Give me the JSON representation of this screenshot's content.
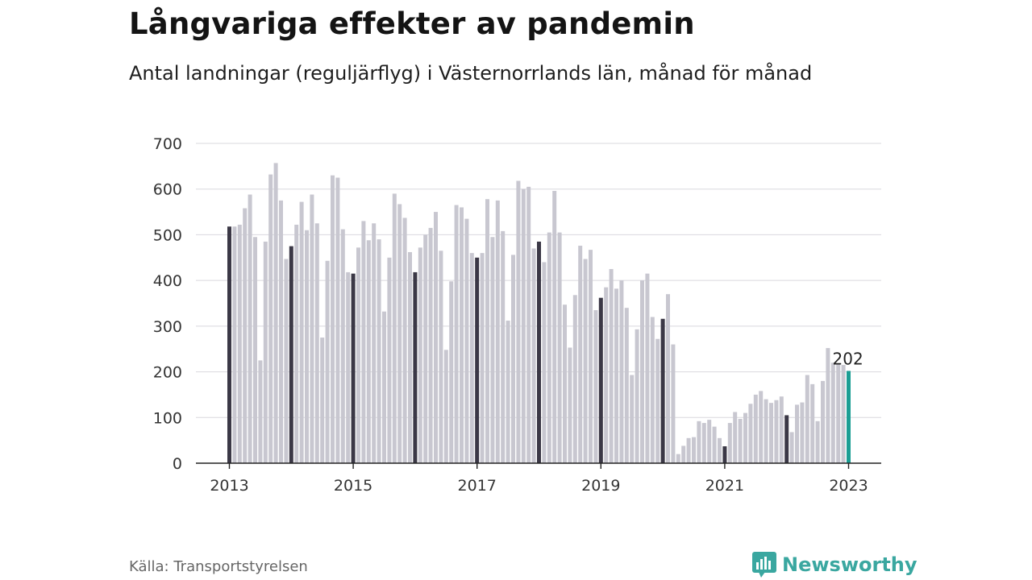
{
  "title": "Långvariga effekter av pandemin",
  "subtitle": "Antal landningar (reguljärflyg) i Västernorrlands län, månad för månad",
  "source": "Källa: Transportstyrelsen",
  "brand": {
    "name": "Newsworthy",
    "icon": "newsworthy-logo-icon",
    "color": "#3aa7a0"
  },
  "chart_data": {
    "type": "bar",
    "title": "",
    "xlabel": "",
    "ylabel": "",
    "ylim": [
      0,
      700
    ],
    "yticks": [
      0,
      100,
      200,
      300,
      400,
      500,
      600,
      700
    ],
    "xtick_labels": [
      "2013",
      "2015",
      "2017",
      "2019",
      "2021",
      "2023"
    ],
    "grid": true,
    "start": "2013-01",
    "end": "2023-01",
    "colors": {
      "january": "#3b3846",
      "other": "#c8c7d0",
      "latest": "#1b9e94"
    },
    "highlight_label": "202",
    "values": [
      518,
      518,
      522,
      558,
      588,
      495,
      225,
      485,
      632,
      657,
      575,
      447,
      475,
      522,
      572,
      510,
      588,
      525,
      275,
      443,
      630,
      625,
      512,
      418,
      415,
      472,
      530,
      488,
      525,
      490,
      332,
      450,
      590,
      567,
      537,
      462,
      418,
      472,
      500,
      515,
      550,
      465,
      248,
      398,
      565,
      560,
      535,
      460,
      450,
      460,
      578,
      495,
      575,
      508,
      312,
      456,
      618,
      600,
      605,
      470,
      485,
      440,
      505,
      596,
      505,
      347,
      253,
      368,
      476,
      447,
      467,
      335,
      362,
      385,
      425,
      382,
      400,
      340,
      193,
      293,
      400,
      415,
      320,
      272,
      316,
      370,
      260,
      20,
      38,
      55,
      57,
      92,
      88,
      95,
      80,
      55,
      37,
      88,
      112,
      97,
      110,
      130,
      150,
      158,
      140,
      132,
      138,
      146,
      105,
      68,
      128,
      133,
      193,
      173,
      92,
      180,
      252,
      220,
      218,
      215,
      202
    ]
  }
}
